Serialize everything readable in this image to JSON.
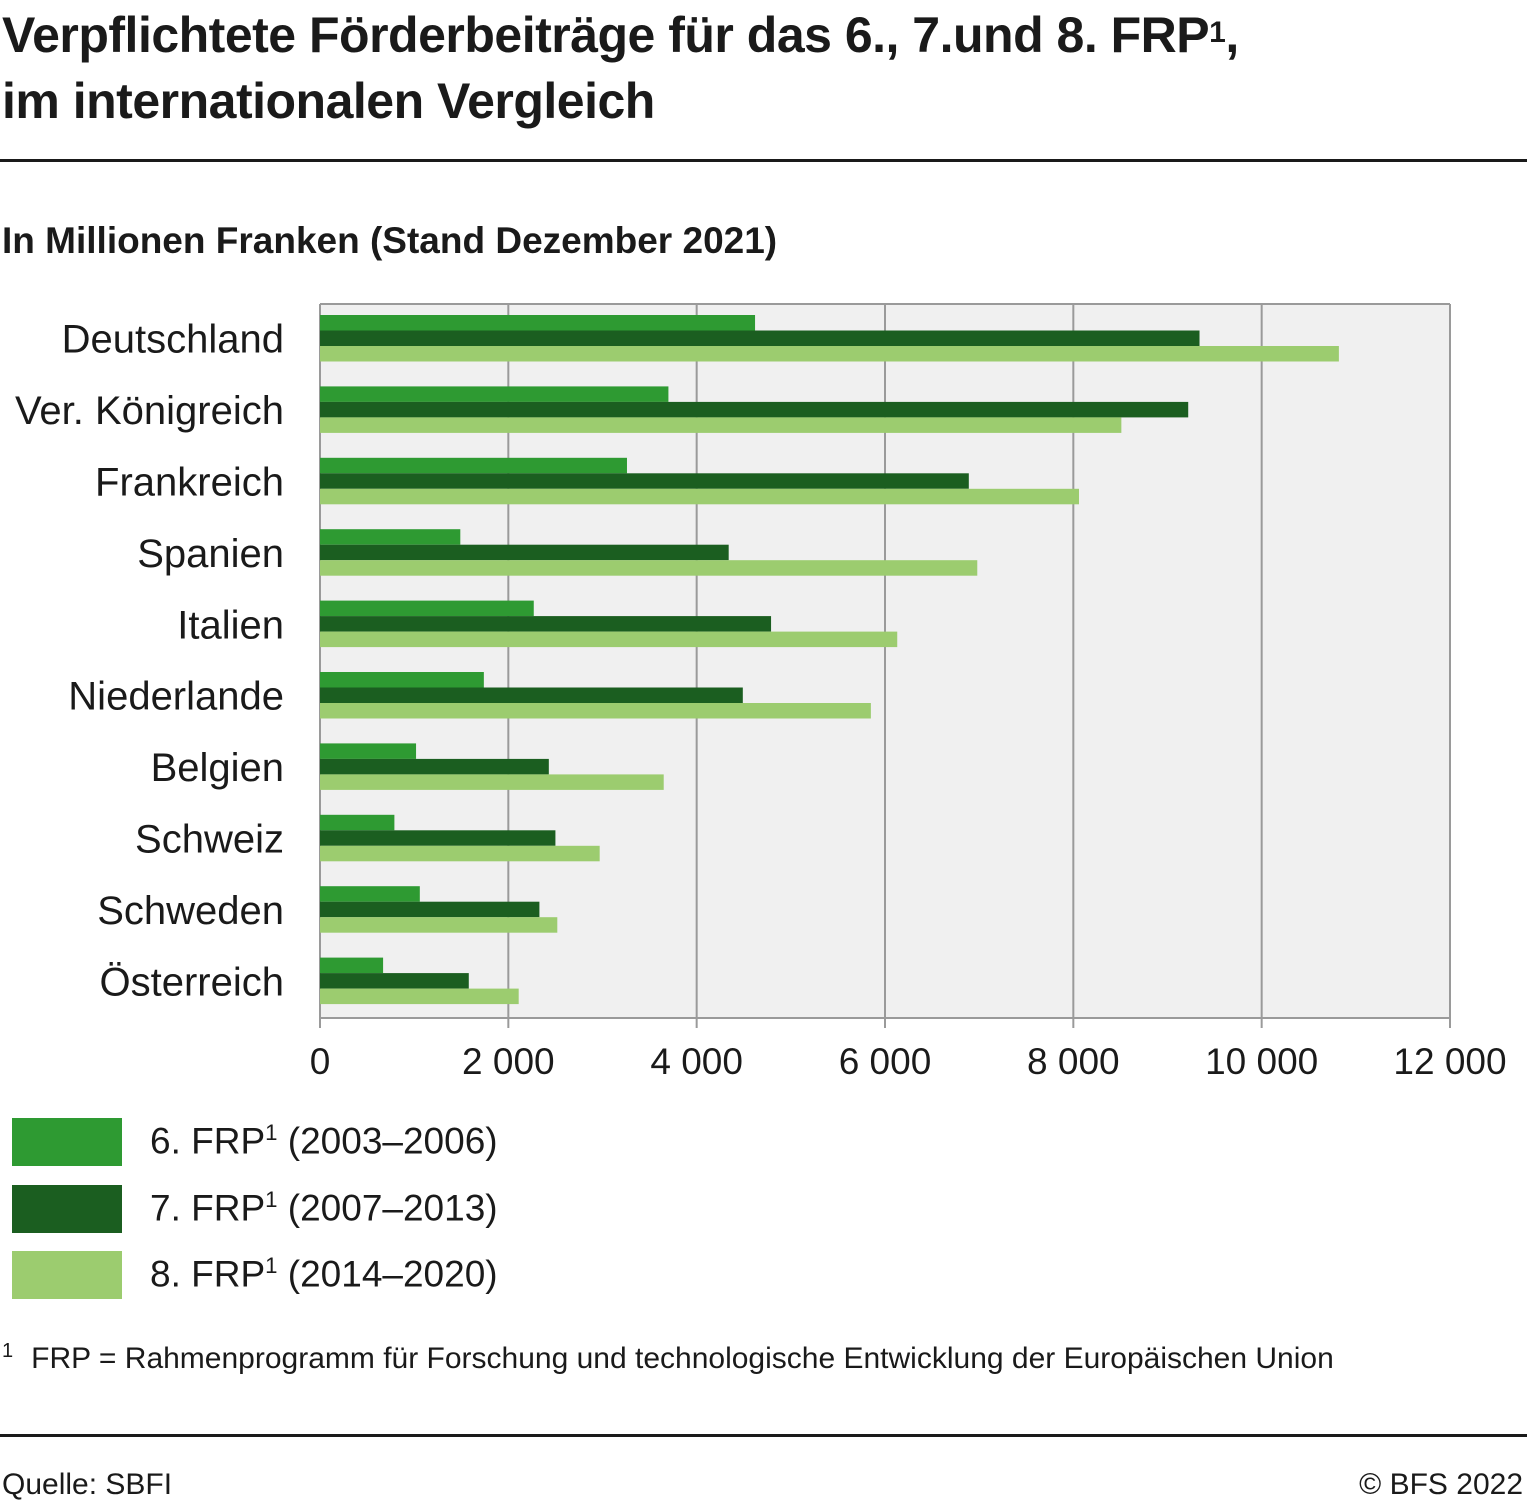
{
  "header": {
    "title_line1": "Verpflichtete Förderbeiträge für das 6., 7.und 8. FRP",
    "title_sup": "1",
    "title_comma": ",",
    "title_line2": "im internationalen Vergleich",
    "subtitle": "In Millionen Franken (Stand Dezember 2021)"
  },
  "chart_data": {
    "type": "bar",
    "orientation": "horizontal",
    "categories": [
      "Deutschland",
      "Ver. Königreich",
      "Frankreich",
      "Spanien",
      "Italien",
      "Niederlande",
      "Belgien",
      "Schweiz",
      "Schweden",
      "Österreich"
    ],
    "series": [
      {
        "name": "6. FRP¹ (2003–2006)",
        "color": "#2e9a32",
        "values": [
          4620,
          3700,
          3260,
          1490,
          2270,
          1740,
          1020,
          790,
          1060,
          670
        ]
      },
      {
        "name": "7. FRP¹ (2007–2013)",
        "color": "#1b5e20",
        "values": [
          9340,
          9220,
          6890,
          4340,
          4790,
          4490,
          2430,
          2500,
          2330,
          1580
        ]
      },
      {
        "name": "8. FRP¹ (2014–2020)",
        "color": "#9ccc6f",
        "values": [
          10820,
          8510,
          8060,
          6980,
          6130,
          5850,
          3650,
          2970,
          2520,
          2110
        ]
      }
    ],
    "xlim": [
      0,
      12000
    ],
    "xticks": [
      0,
      2000,
      4000,
      6000,
      8000,
      10000,
      12000
    ],
    "xtick_labels": [
      "0",
      "2 000",
      "4 000",
      "6 000",
      "8 000",
      "10 000",
      "12 000"
    ],
    "grid": true,
    "legend_position": "bottom-left",
    "plot_background": "#f0f0f0"
  },
  "legend": {
    "items": [
      {
        "label_prefix": "6. FRP",
        "sup": "1",
        "label_suffix": " (2003–2006)",
        "color": "#2e9a32"
      },
      {
        "label_prefix": "7. FRP",
        "sup": "1",
        "label_suffix": " (2007–2013)",
        "color": "#1b5e20"
      },
      {
        "label_prefix": "8. FRP",
        "sup": "1",
        "label_suffix": " (2014–2020)",
        "color": "#9ccc6f"
      }
    ]
  },
  "footnote": {
    "mark": "1",
    "text": "FRP = Rahmenprogramm für Forschung und technologische Entwicklung der Europäischen Union"
  },
  "footer": {
    "source": "Quelle: SBFI",
    "copyright": "© BFS 2022"
  }
}
